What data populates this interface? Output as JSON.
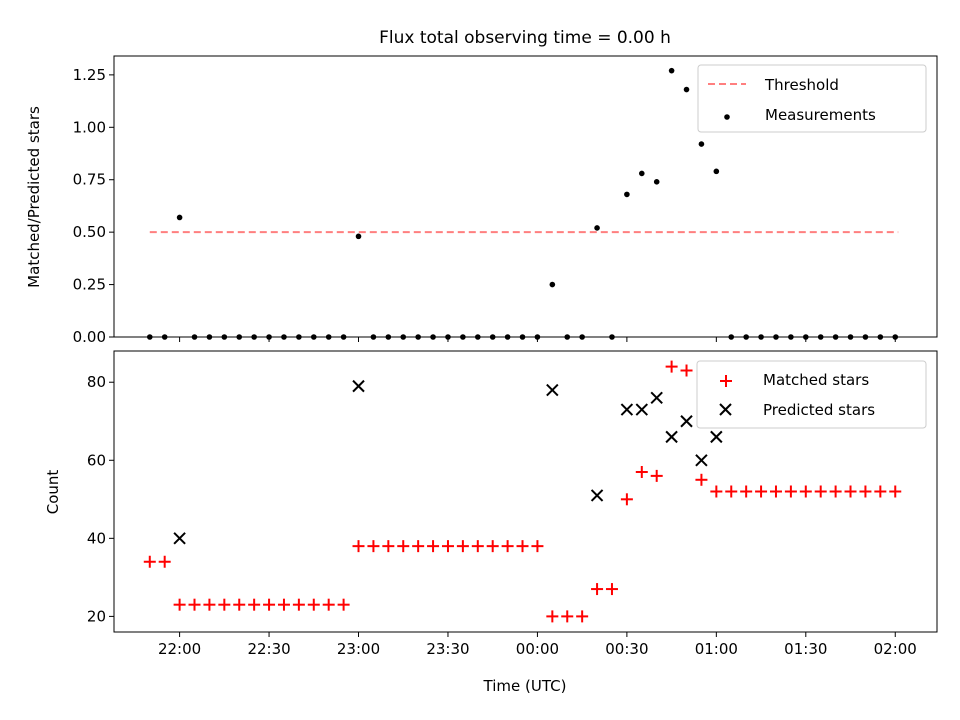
{
  "chart_data": {
    "title": "Flux total observing time = 0.00 h",
    "x_tick_labels": [
      "22:00",
      "22:30",
      "23:00",
      "23:30",
      "00:00",
      "00:30",
      "01:00",
      "01:30",
      "02:00"
    ],
    "x_tick_values": [
      0,
      30,
      60,
      90,
      120,
      150,
      180,
      210,
      240
    ],
    "xlabel": "Time (UTC)",
    "xlim": [
      -22,
      254
    ],
    "x_unit": "minutes after 22:00 UTC",
    "panels": [
      {
        "type": "scatter",
        "ylabel": "Matched/Predicted stars",
        "ylim": [
          0,
          1.34
        ],
        "y_ticks": [
          0.0,
          0.25,
          0.5,
          0.75,
          1.0,
          1.25
        ],
        "y_tick_labels": [
          "0.00",
          "0.25",
          "0.50",
          "0.75",
          "1.00",
          "1.25"
        ],
        "legend_position": "top-right",
        "threshold": {
          "name": "Threshold",
          "value": 0.5,
          "x_range": [
            -10,
            241
          ],
          "color": "#ff7f7f"
        },
        "series": [
          {
            "name": "Measurements",
            "marker": "dot",
            "color": "#000000",
            "points": [
              [
                -10,
                0
              ],
              [
                -5,
                0
              ],
              [
                0,
                0.57
              ],
              [
                5,
                0
              ],
              [
                10,
                0
              ],
              [
                15,
                0
              ],
              [
                20,
                0
              ],
              [
                25,
                0
              ],
              [
                30,
                0
              ],
              [
                35,
                0
              ],
              [
                40,
                0
              ],
              [
                45,
                0
              ],
              [
                50,
                0
              ],
              [
                55,
                0
              ],
              [
                60,
                0.48
              ],
              [
                65,
                0
              ],
              [
                70,
                0
              ],
              [
                75,
                0
              ],
              [
                80,
                0
              ],
              [
                85,
                0
              ],
              [
                90,
                0
              ],
              [
                95,
                0
              ],
              [
                100,
                0
              ],
              [
                105,
                0
              ],
              [
                110,
                0
              ],
              [
                115,
                0
              ],
              [
                120,
                0
              ],
              [
                125,
                0.25
              ],
              [
                130,
                0
              ],
              [
                135,
                0
              ],
              [
                140,
                0.52
              ],
              [
                145,
                0
              ],
              [
                150,
                0.68
              ],
              [
                155,
                0.78
              ],
              [
                160,
                0.74
              ],
              [
                165,
                1.27
              ],
              [
                170,
                1.18
              ],
              [
                175,
                0.92
              ],
              [
                180,
                0.79
              ],
              [
                185,
                0
              ],
              [
                190,
                0
              ],
              [
                195,
                0
              ],
              [
                200,
                0
              ],
              [
                205,
                0
              ],
              [
                210,
                0
              ],
              [
                215,
                0
              ],
              [
                220,
                0
              ],
              [
                225,
                0
              ],
              [
                230,
                0
              ],
              [
                235,
                0
              ],
              [
                240,
                0
              ]
            ]
          }
        ]
      },
      {
        "type": "scatter",
        "ylabel": "Count",
        "ylim": [
          16,
          88
        ],
        "y_ticks": [
          20,
          40,
          60,
          80
        ],
        "y_tick_labels": [
          "20",
          "40",
          "60",
          "80"
        ],
        "legend_position": "top-right",
        "series": [
          {
            "name": "Matched stars",
            "marker": "plus",
            "color": "#ff0000",
            "points": [
              [
                -10,
                34
              ],
              [
                -5,
                34
              ],
              [
                0,
                23
              ],
              [
                5,
                23
              ],
              [
                10,
                23
              ],
              [
                15,
                23
              ],
              [
                20,
                23
              ],
              [
                25,
                23
              ],
              [
                30,
                23
              ],
              [
                35,
                23
              ],
              [
                40,
                23
              ],
              [
                45,
                23
              ],
              [
                50,
                23
              ],
              [
                55,
                23
              ],
              [
                60,
                38
              ],
              [
                65,
                38
              ],
              [
                70,
                38
              ],
              [
                75,
                38
              ],
              [
                80,
                38
              ],
              [
                85,
                38
              ],
              [
                90,
                38
              ],
              [
                95,
                38
              ],
              [
                100,
                38
              ],
              [
                105,
                38
              ],
              [
                110,
                38
              ],
              [
                115,
                38
              ],
              [
                120,
                38
              ],
              [
                125,
                20
              ],
              [
                130,
                20
              ],
              [
                135,
                20
              ],
              [
                140,
                27
              ],
              [
                145,
                27
              ],
              [
                150,
                50
              ],
              [
                155,
                57
              ],
              [
                160,
                56
              ],
              [
                165,
                84
              ],
              [
                170,
                83
              ],
              [
                175,
                55
              ],
              [
                180,
                52
              ],
              [
                185,
                52
              ],
              [
                190,
                52
              ],
              [
                195,
                52
              ],
              [
                200,
                52
              ],
              [
                205,
                52
              ],
              [
                210,
                52
              ],
              [
                215,
                52
              ],
              [
                220,
                52
              ],
              [
                225,
                52
              ],
              [
                230,
                52
              ],
              [
                235,
                52
              ],
              [
                240,
                52
              ]
            ]
          },
          {
            "name": "Predicted stars",
            "marker": "x",
            "color": "#000000",
            "points": [
              [
                0,
                40
              ],
              [
                60,
                79
              ],
              [
                125,
                78
              ],
              [
                140,
                51
              ],
              [
                150,
                73
              ],
              [
                155,
                73
              ],
              [
                160,
                76
              ],
              [
                165,
                66
              ],
              [
                170,
                70
              ],
              [
                175,
                60
              ],
              [
                180,
                66
              ]
            ]
          }
        ]
      }
    ]
  }
}
